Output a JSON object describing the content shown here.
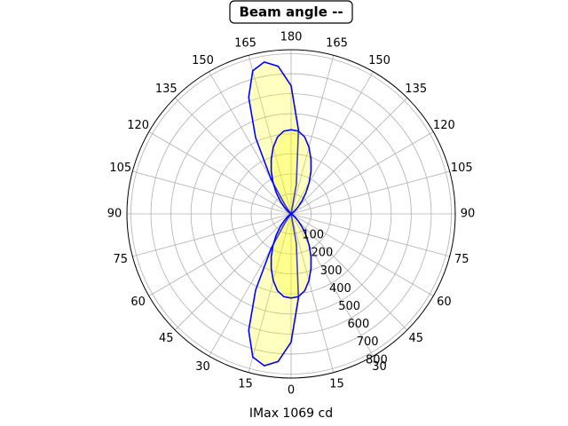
{
  "chart_data": {
    "type": "polar",
    "title": "Beam angle --",
    "xlabel": "IMax 1069 cd",
    "theta": [
      0,
      5,
      10,
      15,
      20,
      25,
      30,
      35,
      40,
      45,
      50,
      55,
      60,
      65,
      70,
      75,
      80,
      85,
      90,
      95,
      100,
      105,
      110,
      115,
      120,
      125,
      130,
      135,
      140,
      145,
      150,
      155,
      160,
      165,
      170,
      175,
      180,
      185,
      190,
      195,
      200,
      205,
      210,
      215,
      220,
      225,
      230,
      235,
      240,
      245,
      250,
      255,
      260,
      265,
      270,
      275,
      280,
      285,
      290,
      295,
      300,
      305,
      310,
      315,
      320,
      325,
      330,
      335,
      340,
      345,
      350,
      355,
      360
    ],
    "series": [
      {
        "color": "#0000ff",
        "fill": "#ffff00",
        "r": [
          640,
          740,
          770,
          740,
          620,
          420,
          200,
          50,
          0,
          0,
          0,
          0,
          0,
          0,
          0,
          0,
          0,
          0,
          0,
          0,
          0,
          0,
          0,
          0,
          0,
          0,
          0,
          0,
          0,
          50,
          200,
          420,
          620,
          740,
          770,
          740,
          640,
          420,
          150,
          0,
          0,
          0,
          0,
          0,
          0,
          0,
          0,
          0,
          0,
          0,
          0,
          0,
          0,
          0,
          0,
          0,
          0,
          0,
          0,
          0,
          0,
          0,
          0,
          0,
          0,
          0,
          0,
          0,
          0,
          0,
          150,
          420,
          640
        ]
      },
      {
        "color": "#0000ff",
        "fill": "#ffff00",
        "r": [
          420,
          415,
          390,
          345,
          290,
          235,
          180,
          130,
          85,
          50,
          25,
          10,
          0,
          0,
          0,
          0,
          0,
          0,
          0,
          0,
          0,
          0,
          0,
          0,
          0,
          10,
          25,
          50,
          85,
          130,
          180,
          235,
          290,
          345,
          390,
          415,
          420,
          415,
          390,
          345,
          290,
          235,
          180,
          130,
          85,
          50,
          25,
          10,
          0,
          0,
          0,
          0,
          0,
          0,
          0,
          0,
          0,
          0,
          0,
          0,
          0,
          10,
          25,
          50,
          85,
          130,
          180,
          235,
          290,
          345,
          390,
          415,
          420
        ]
      }
    ],
    "rlim": [
      0,
      820
    ],
    "rticks": [
      100,
      200,
      300,
      400,
      500,
      600,
      700,
      800
    ],
    "thetaticks": [
      0,
      15,
      30,
      45,
      60,
      75,
      90,
      105,
      120,
      135,
      150,
      165,
      180,
      {
        "value": 195,
        "label": "165"
      },
      {
        "value": 210,
        "label": "150"
      },
      {
        "value": 225,
        "label": "135"
      },
      {
        "value": 240,
        "label": "120"
      },
      {
        "value": 255,
        "label": "105"
      },
      {
        "value": 270,
        "label": "90"
      },
      {
        "value": 285,
        "label": "75"
      },
      {
        "value": 300,
        "label": "60"
      },
      {
        "value": 315,
        "label": "45"
      },
      {
        "value": 330,
        "label": "30"
      },
      {
        "value": 345,
        "label": "15"
      }
    ],
    "grid": true
  }
}
